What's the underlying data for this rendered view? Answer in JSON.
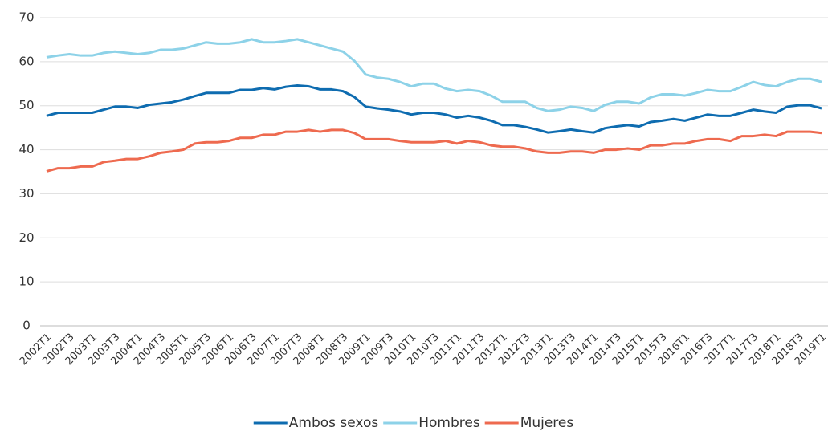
{
  "chart_data": {
    "type": "line",
    "categories": [
      "2002T1",
      null,
      "2002T3",
      null,
      "2003T1",
      null,
      "2003T3",
      null,
      "2004T1",
      null,
      "2004T3",
      null,
      "2005T1",
      null,
      "2005T3",
      null,
      "2006T1",
      null,
      "2006T3",
      null,
      "2007T1",
      null,
      "2007T3",
      null,
      "2008T1",
      null,
      "2008T3",
      null,
      "2009T1",
      null,
      "2009T3",
      null,
      "2010T1",
      null,
      "2010T3",
      null,
      "2011T1",
      null,
      "2011T3",
      null,
      "2012T1",
      null,
      "2012T3",
      null,
      "2013T1",
      null,
      "2013T3",
      null,
      "2014T1",
      null,
      "2014T3",
      null,
      "2015T1",
      null,
      "2015T3",
      null,
      "2016T1",
      null,
      "2016T3",
      null,
      "2017T1",
      null,
      "2017T3",
      null,
      "2018T1",
      null,
      "2018T3",
      null,
      "2019T1"
    ],
    "series": [
      {
        "name": "Ambos sexos",
        "color": "#0e6cb0",
        "values": [
          47.7,
          48.4,
          48.4,
          48.4,
          48.4,
          49.1,
          49.8,
          49.8,
          49.5,
          50.2,
          50.5,
          50.8,
          51.4,
          52.2,
          52.9,
          52.9,
          52.9,
          53.6,
          53.6,
          54.0,
          53.7,
          54.3,
          54.6,
          54.4,
          53.7,
          53.7,
          53.3,
          52.0,
          49.8,
          49.4,
          49.1,
          48.7,
          48.0,
          48.4,
          48.4,
          48.0,
          47.3,
          47.7,
          47.3,
          46.6,
          45.6,
          45.6,
          45.2,
          44.6,
          43.9,
          44.2,
          44.6,
          44.2,
          43.9,
          44.9,
          45.3,
          45.6,
          45.3,
          46.3,
          46.6,
          47.0,
          46.6,
          47.3,
          48.0,
          47.7,
          47.7,
          48.4,
          49.1,
          48.7,
          48.4,
          49.8,
          50.1,
          50.1,
          49.4
        ]
      },
      {
        "name": "Hombres",
        "color": "#8dd2e8",
        "values": [
          61.0,
          61.4,
          61.7,
          61.4,
          61.4,
          62.0,
          62.3,
          62.0,
          61.7,
          62.0,
          62.7,
          62.7,
          63.0,
          63.7,
          64.4,
          64.1,
          64.1,
          64.4,
          65.1,
          64.4,
          64.4,
          64.7,
          65.1,
          64.4,
          63.7,
          63.0,
          62.3,
          60.2,
          57.1,
          56.4,
          56.1,
          55.4,
          54.4,
          55.0,
          55.0,
          53.9,
          53.3,
          53.6,
          53.3,
          52.3,
          50.9,
          50.9,
          50.9,
          49.5,
          48.8,
          49.1,
          49.8,
          49.5,
          48.8,
          50.2,
          50.9,
          50.9,
          50.5,
          51.9,
          52.6,
          52.6,
          52.3,
          52.9,
          53.6,
          53.3,
          53.3,
          54.3,
          55.4,
          54.7,
          54.4,
          55.4,
          56.1,
          56.1,
          55.4
        ]
      },
      {
        "name": "Mujeres",
        "color": "#ee6a4f",
        "values": [
          35.1,
          35.8,
          35.8,
          36.2,
          36.2,
          37.2,
          37.5,
          37.9,
          37.9,
          38.5,
          39.3,
          39.6,
          40.0,
          41.4,
          41.7,
          41.7,
          42.0,
          42.7,
          42.7,
          43.4,
          43.4,
          44.1,
          44.1,
          44.5,
          44.1,
          44.5,
          44.5,
          43.8,
          42.4,
          42.4,
          42.4,
          42.0,
          41.7,
          41.7,
          41.7,
          42.0,
          41.4,
          42.0,
          41.7,
          41.0,
          40.7,
          40.7,
          40.3,
          39.6,
          39.3,
          39.3,
          39.6,
          39.6,
          39.3,
          40.0,
          40.0,
          40.3,
          40.0,
          41.0,
          41.0,
          41.4,
          41.4,
          42.0,
          42.4,
          42.4,
          42.0,
          43.1,
          43.1,
          43.4,
          43.1,
          44.1,
          44.1,
          44.1,
          43.8
        ]
      }
    ],
    "ylim": [
      0,
      70
    ],
    "yticks": [
      0,
      10,
      20,
      30,
      40,
      50,
      60,
      70
    ],
    "grid": true,
    "legend": "bottom"
  }
}
